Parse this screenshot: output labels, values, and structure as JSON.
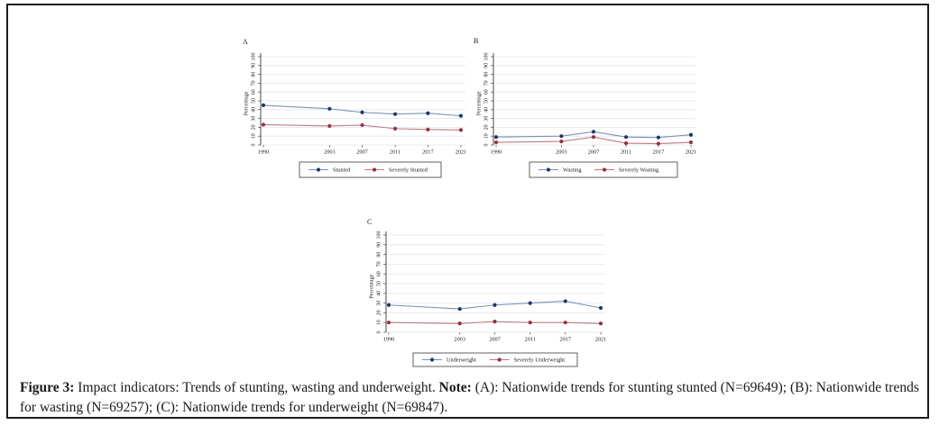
{
  "caption": {
    "figure_label": "Figure 3:",
    "title_text": " Impact indicators: Trends of stunting, wasting and underweight. ",
    "note_label": "Note:",
    "note_text": " (A): Nationwide trends for stunting stunted (N=69649); (B): Nationwide trends for wasting (N=69257); (C): Nationwide trends for underweight (N=69847)."
  },
  "colors": {
    "gridline": "#dde6f2",
    "axis": "#4a4a4a",
    "legend_border": "#3a3a3a",
    "frame_border": "#1c1c1c",
    "background": "#ffffff",
    "blue_marker": "#1d3866",
    "blue_line": "#7b91b5",
    "red_marker": "#962f3c",
    "red_line": "#bd7b85"
  },
  "chart_data": [
    {
      "type": "line",
      "panel_label": "A",
      "x": [
        "1990",
        "2003",
        "2007",
        "2011",
        "2017",
        "2021"
      ],
      "series": [
        {
          "name": "Stunted",
          "color": "#1d3866",
          "line_color": "#7b91b5",
          "values": [
            45,
            41,
            37,
            35,
            36,
            33
          ]
        },
        {
          "name": "Severely Stunted",
          "color": "#962f3c",
          "line_color": "#bd7b85",
          "values": [
            23,
            21.5,
            22.5,
            18.5,
            17.5,
            17
          ]
        }
      ],
      "xlabel": "",
      "ylabel": "Percentage",
      "ylim": [
        0,
        100
      ],
      "yticks": [
        0,
        10,
        20,
        30,
        40,
        50,
        60,
        70,
        80,
        90,
        100
      ],
      "grid": true,
      "legend_position": "bottom"
    },
    {
      "type": "line",
      "panel_label": "B",
      "x": [
        "1990",
        "2003",
        "2007",
        "2011",
        "2017",
        "2021"
      ],
      "series": [
        {
          "name": "Wasting",
          "color": "#1d3866",
          "line_color": "#7b91b5",
          "values": [
            9,
            10,
            15,
            9,
            8.5,
            11.5
          ]
        },
        {
          "name": "Severely Wasting",
          "color": "#962f3c",
          "line_color": "#bd7b85",
          "values": [
            3,
            4,
            9,
            2,
            1.5,
            3
          ]
        }
      ],
      "xlabel": "",
      "ylabel": "Percentage",
      "ylim": [
        0,
        100
      ],
      "yticks": [
        0,
        10,
        20,
        30,
        40,
        50,
        60,
        70,
        80,
        90,
        100
      ],
      "grid": true,
      "legend_position": "bottom"
    },
    {
      "type": "line",
      "panel_label": "C",
      "x": [
        "1990",
        "2003",
        "2007",
        "2011",
        "2017",
        "2021"
      ],
      "series": [
        {
          "name": "Underweight",
          "color": "#1d3866",
          "line_color": "#7b91b5",
          "values": [
            28,
            24,
            28,
            30,
            32,
            25
          ]
        },
        {
          "name": "Severely Underweight",
          "color": "#962f3c",
          "line_color": "#bd7b85",
          "values": [
            10,
            9,
            11,
            10,
            10,
            9
          ]
        }
      ],
      "xlabel": "",
      "ylabel": "Percentage",
      "ylim": [
        0,
        100
      ],
      "yticks": [
        0,
        10,
        20,
        30,
        40,
        50,
        60,
        70,
        80,
        90,
        100
      ],
      "grid": true,
      "legend_position": "bottom"
    }
  ]
}
